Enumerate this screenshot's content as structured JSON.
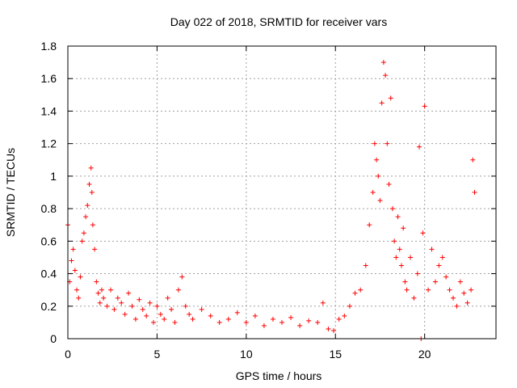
{
  "colors": {
    "series": "#ff0000",
    "grid": "#a0a0a0",
    "axis": "#000000"
  },
  "chart_data": {
    "type": "scatter",
    "title": "Day 022 of 2018, SRMTID for receiver vars",
    "xlabel": "GPS time / hours",
    "ylabel": "SRMTID / TECUs",
    "xlim": [
      0,
      24
    ],
    "ylim": [
      0,
      1.8
    ],
    "xticks": [
      0,
      5,
      10,
      15,
      20
    ],
    "yticks": [
      0,
      0.2,
      0.4,
      0.6,
      0.8,
      1,
      1.2,
      1.4,
      1.6,
      1.8
    ],
    "xtick_labels": [
      "0",
      "5",
      "10",
      "15",
      "20"
    ],
    "ytick_labels": [
      "0",
      "0.2",
      "0.4",
      "0.6",
      "0.8",
      "1",
      "1.2",
      "1.4",
      "1.6",
      "1.8"
    ],
    "grid": true,
    "marker": "+",
    "series": [
      {
        "name": "SRMTID",
        "x": [
          0.0,
          0.1,
          0.2,
          0.3,
          0.4,
          0.5,
          0.6,
          0.7,
          0.8,
          0.9,
          1.0,
          1.1,
          1.2,
          1.3,
          1.35,
          1.4,
          1.5,
          1.6,
          1.7,
          1.8,
          1.9,
          2.0,
          2.2,
          2.4,
          2.6,
          2.8,
          3.0,
          3.2,
          3.4,
          3.6,
          3.8,
          4.0,
          4.2,
          4.4,
          4.6,
          4.8,
          5.0,
          5.2,
          5.4,
          5.6,
          5.8,
          6.0,
          6.2,
          6.4,
          6.6,
          6.8,
          7.0,
          7.5,
          8.0,
          8.5,
          9.0,
          9.5,
          10.0,
          10.5,
          11.0,
          11.5,
          12.0,
          12.5,
          13.0,
          13.5,
          14.0,
          14.3,
          14.6,
          14.9,
          15.2,
          15.5,
          15.8,
          16.1,
          16.4,
          16.7,
          16.9,
          17.1,
          17.2,
          17.3,
          17.4,
          17.5,
          17.6,
          17.7,
          17.8,
          17.9,
          18.0,
          18.1,
          18.2,
          18.3,
          18.4,
          18.5,
          18.6,
          18.7,
          18.8,
          18.9,
          19.0,
          19.2,
          19.4,
          19.6,
          19.7,
          19.8,
          19.9,
          20.0,
          20.2,
          20.4,
          20.6,
          20.8,
          21.0,
          21.2,
          21.4,
          21.6,
          21.8,
          22.0,
          22.2,
          22.4,
          22.6,
          22.7,
          22.8
        ],
        "y": [
          0.7,
          0.35,
          0.48,
          0.55,
          0.42,
          0.3,
          0.25,
          0.38,
          0.6,
          0.65,
          0.75,
          0.82,
          0.95,
          1.05,
          0.9,
          0.7,
          0.55,
          0.35,
          0.28,
          0.22,
          0.3,
          0.25,
          0.2,
          0.3,
          0.18,
          0.25,
          0.22,
          0.15,
          0.28,
          0.2,
          0.12,
          0.24,
          0.18,
          0.14,
          0.22,
          0.1,
          0.2,
          0.15,
          0.12,
          0.25,
          0.18,
          0.1,
          0.3,
          0.38,
          0.2,
          0.15,
          0.12,
          0.18,
          0.14,
          0.1,
          0.12,
          0.16,
          0.1,
          0.14,
          0.08,
          0.12,
          0.1,
          0.13,
          0.08,
          0.11,
          0.1,
          0.22,
          0.06,
          0.05,
          0.12,
          0.14,
          0.2,
          0.28,
          0.3,
          0.45,
          0.7,
          0.9,
          1.2,
          1.1,
          1.0,
          0.85,
          1.45,
          1.7,
          1.62,
          1.2,
          0.95,
          1.48,
          0.8,
          0.6,
          0.5,
          0.75,
          0.55,
          0.45,
          0.68,
          0.35,
          0.3,
          0.5,
          0.25,
          0.4,
          1.18,
          0.0,
          0.65,
          1.43,
          0.3,
          0.55,
          0.35,
          0.45,
          0.5,
          0.38,
          0.3,
          0.25,
          0.2,
          0.35,
          0.28,
          0.22,
          0.3,
          1.1,
          0.9
        ]
      }
    ]
  }
}
